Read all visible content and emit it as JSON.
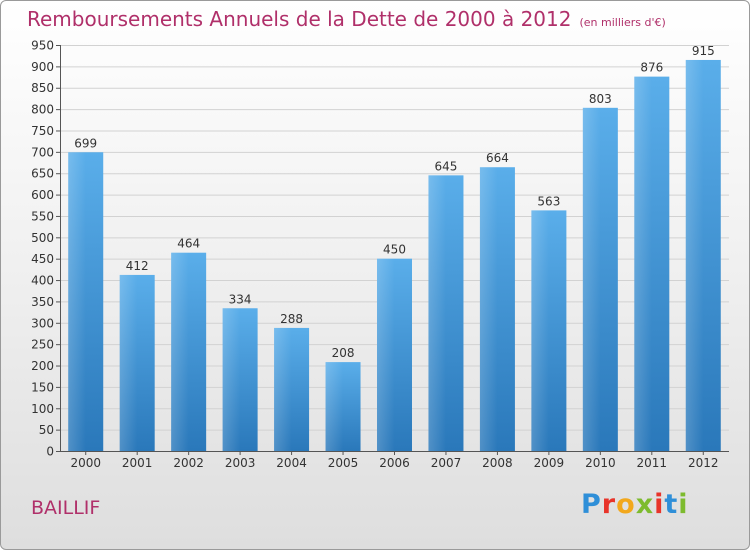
{
  "chart_data": {
    "type": "bar",
    "title": "Remboursements Annuels de la Dette de 2000 à 2012",
    "unit_label": "(en milliers d'€)",
    "xlabel": "",
    "ylabel": "",
    "categories": [
      "2000",
      "2001",
      "2002",
      "2003",
      "2004",
      "2005",
      "2006",
      "2007",
      "2008",
      "2009",
      "2010",
      "2011",
      "2012"
    ],
    "values": [
      699,
      412,
      464,
      334,
      288,
      208,
      450,
      645,
      664,
      563,
      803,
      876,
      915
    ],
    "ylim": [
      0,
      950
    ],
    "yticks": [
      0,
      50,
      100,
      150,
      200,
      250,
      300,
      350,
      400,
      450,
      500,
      550,
      600,
      650,
      700,
      750,
      800,
      850,
      900,
      950
    ],
    "grid": true,
    "bar_color": "#3d8fd1"
  },
  "footer": {
    "town": "BAILLIF",
    "logo_letters": [
      "P",
      "r",
      "o",
      "x",
      "i",
      "t",
      "i"
    ],
    "logo_colors": [
      "#2f8fd8",
      "#e8342a",
      "#f2a81d",
      "#7dbb2e",
      "#e8342a",
      "#2f8fd8",
      "#7dbb2e"
    ]
  }
}
